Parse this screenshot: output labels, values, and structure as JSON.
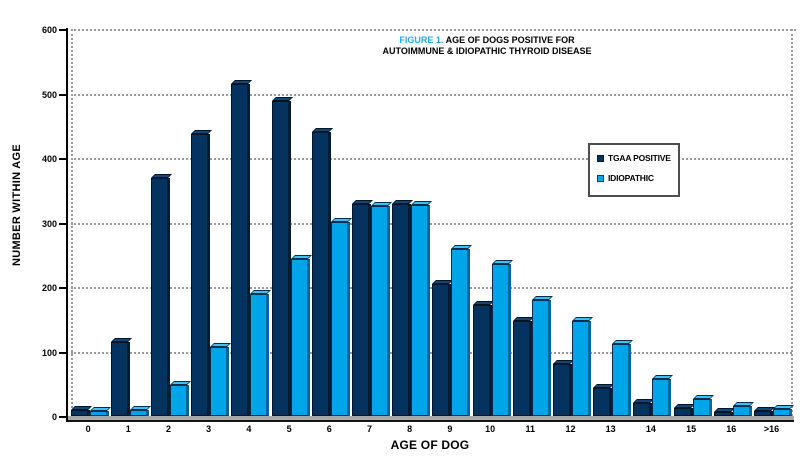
{
  "figure": {
    "number_label": "FIGURE 1.",
    "title_rest": " AGE OF DOGS POSITIVE FOR",
    "title_line2": "AUTOIMMUNE & IDIOPATHIC THYROID DISEASE"
  },
  "colors": {
    "accent_title": "#29abe2",
    "tgaa_fill": "#04335f",
    "tgaa_cap": "#0c4a7d",
    "tgaa_edge": "#021425",
    "tgaa_side": "#021c33",
    "idiopathic_fill": "#00a5e9",
    "idiopathic_cap": "#3cc2f2",
    "idiopathic_edge": "#062c4e",
    "idiopathic_side": "#07659c",
    "grid": "#9a9a9a",
    "axis": "#000000",
    "baseline": "#a8a8a8"
  },
  "chart_data": {
    "type": "bar",
    "title": "FIGURE 1. AGE OF DOGS POSITIVE FOR AUTOIMMUNE & IDIOPATHIC THYROID DISEASE",
    "xlabel": "AGE OF DOG",
    "ylabel": "NUMBER WITHIN AGE",
    "categories": [
      "0",
      "1",
      "2",
      "3",
      "4",
      "5",
      "6",
      "7",
      "8",
      "9",
      "10",
      "11",
      "12",
      "13",
      "14",
      "15",
      "16",
      ">16"
    ],
    "series": [
      {
        "name": "TGAA POSITIVE",
        "color": "#04335f",
        "values": [
          10,
          115,
          369,
          437,
          514,
          489,
          441,
          328,
          329,
          205,
          172,
          148,
          80,
          43,
          20,
          12,
          6,
          8
        ]
      },
      {
        "name": "IDIOPATHIC",
        "color": "#00a5e9",
        "values": [
          8,
          10,
          48,
          107,
          189,
          244,
          300,
          326,
          327,
          259,
          236,
          180,
          148,
          111,
          57,
          26,
          15,
          11
        ]
      }
    ],
    "ylim": [
      0,
      600
    ],
    "yticks": [
      0,
      100,
      200,
      300,
      400,
      500,
      600
    ],
    "grid": true,
    "legend_position": "upper-right"
  }
}
